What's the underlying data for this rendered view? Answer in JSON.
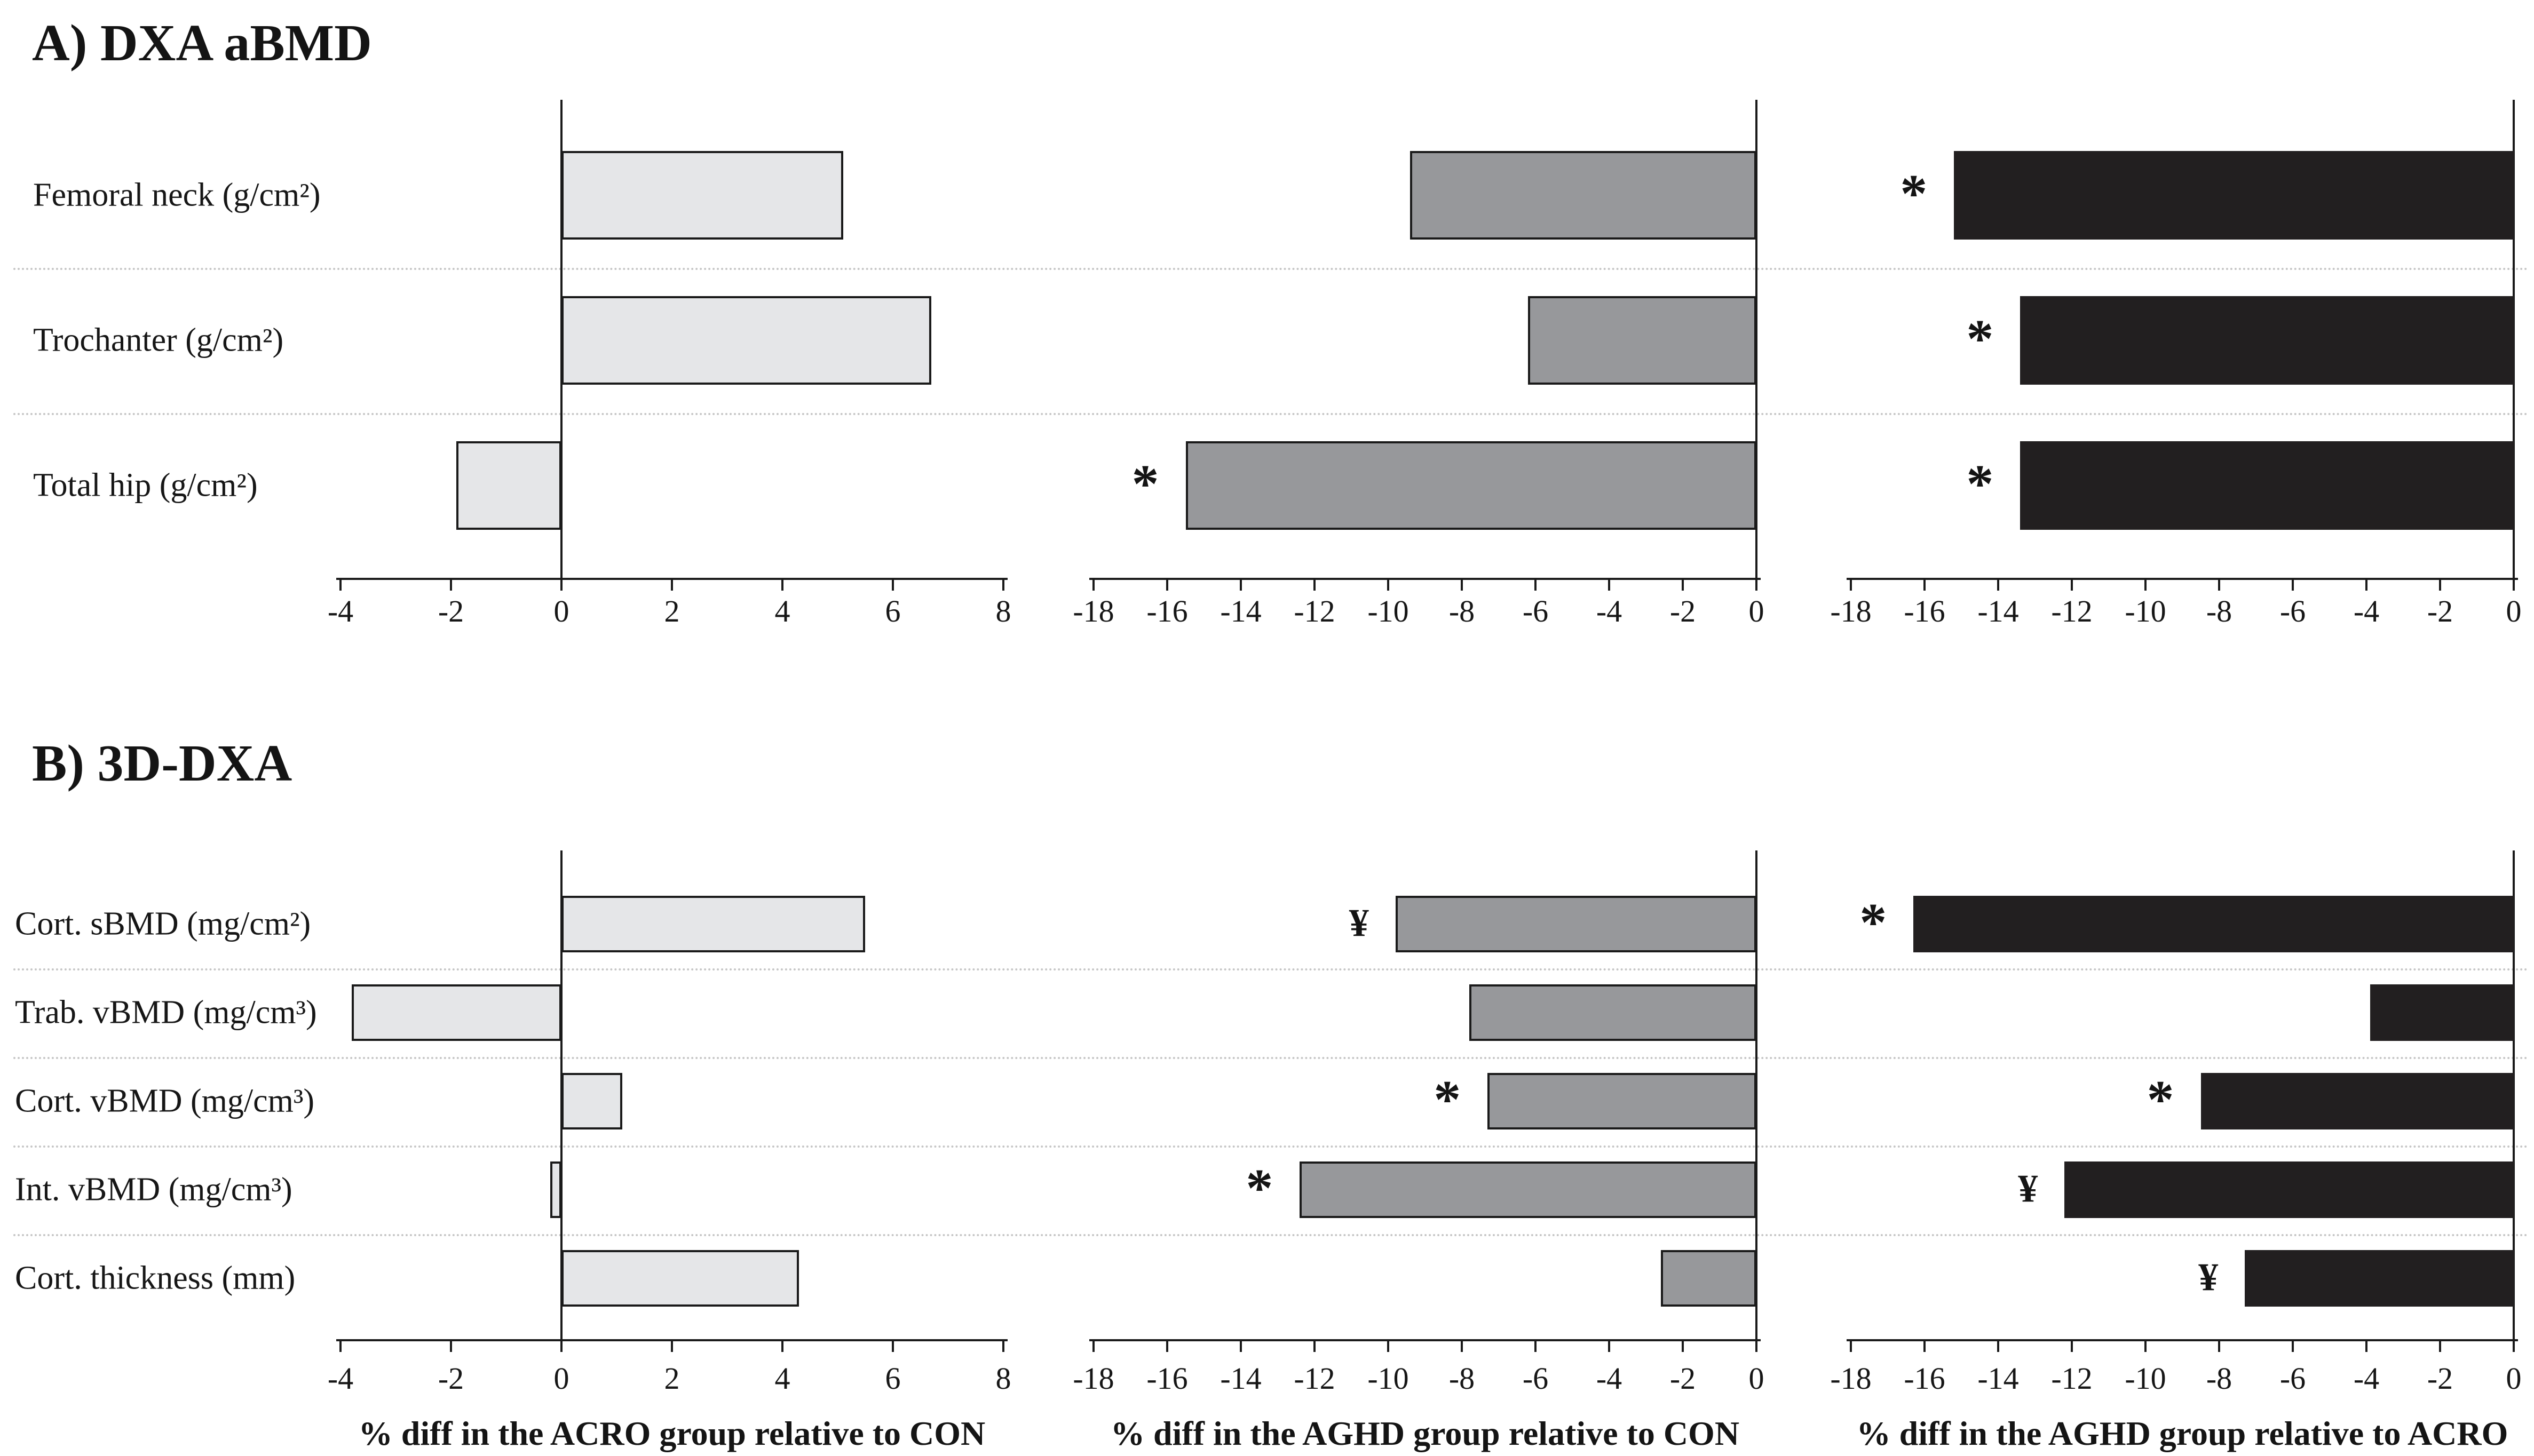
{
  "chart_data": {
    "type": "bar",
    "orientation": "horizontal",
    "grid": "dotted row separators",
    "panels": [
      {
        "title": "A) DXA aBMD",
        "categories": [
          "Femoral neck (g/cm²)",
          "Trochanter (g/cm²)",
          "Total hip (g/cm²)"
        ],
        "charts": [
          {
            "name": "ACRO vs CON",
            "xlabel": "",
            "xlim": [
              -4,
              8
            ],
            "ticks": [
              -4,
              -2,
              0,
              2,
              4,
              6,
              8
            ],
            "bar_color": "#e5e6e8",
            "bar_border": "#1a1a1a",
            "values": [
              5.1,
              6.7,
              -1.9
            ],
            "annotations": [
              "",
              "",
              ""
            ]
          },
          {
            "name": "AGHD vs CON",
            "xlabel": "",
            "xlim": [
              -18,
              0
            ],
            "ticks": [
              -18,
              -16,
              -14,
              -12,
              -10,
              -8,
              -6,
              -4,
              -2,
              0
            ],
            "bar_color": "#97989b",
            "bar_border": "#1a1a1a",
            "values": [
              -9.4,
              -6.2,
              -15.5
            ],
            "annotations": [
              "",
              "",
              "*"
            ]
          },
          {
            "name": "AGHD vs ACRO",
            "xlabel": "",
            "xlim": [
              -18,
              0
            ],
            "ticks": [
              -18,
              -16,
              -14,
              -12,
              -10,
              -8,
              -6,
              -4,
              -2,
              0
            ],
            "bar_color": "#221f20",
            "bar_border": "#221f20",
            "values": [
              -15.2,
              -13.4,
              -13.4
            ],
            "annotations": [
              "*",
              "*",
              "*"
            ]
          }
        ]
      },
      {
        "title": "B) 3D-DXA",
        "categories": [
          "Cort. sBMD (mg/cm²)",
          "Trab. vBMD (mg/cm³)",
          "Cort. vBMD (mg/cm³)",
          "Int. vBMD (mg/cm³)",
          "Cort. thickness (mm)"
        ],
        "charts": [
          {
            "name": "ACRO vs CON",
            "xlabel": "% diff in the ACRO group relative to CON",
            "xlim": [
              -4,
              8
            ],
            "ticks": [
              -4,
              -2,
              0,
              2,
              4,
              6,
              8
            ],
            "bar_color": "#e5e6e8",
            "bar_border": "#1a1a1a",
            "values": [
              5.5,
              -3.8,
              1.1,
              -0.2,
              4.3
            ],
            "annotations": [
              "",
              "",
              "",
              "",
              ""
            ]
          },
          {
            "name": "AGHD vs CON",
            "xlabel": "% diff in the AGHD group relative to CON",
            "xlim": [
              -18,
              0
            ],
            "ticks": [
              -18,
              -16,
              -14,
              -12,
              -10,
              -8,
              -6,
              -4,
              -2,
              0
            ],
            "bar_color": "#97989b",
            "bar_border": "#1a1a1a",
            "values": [
              -9.8,
              -7.8,
              -7.3,
              -12.4,
              -2.6
            ],
            "annotations": [
              "¥",
              "",
              "*",
              "*",
              ""
            ]
          },
          {
            "name": "AGHD vs ACRO",
            "xlabel": "% diff in the AGHD group relative to ACRO",
            "xlim": [
              -18,
              0
            ],
            "ticks": [
              -18,
              -16,
              -14,
              -12,
              -10,
              -8,
              -6,
              -4,
              -2,
              0
            ],
            "bar_color": "#221f20",
            "bar_border": "#221f20",
            "values": [
              -16.3,
              -3.9,
              -8.5,
              -12.2,
              -7.3
            ],
            "annotations": [
              "*",
              "",
              "*",
              "¥",
              "¥"
            ]
          }
        ]
      }
    ]
  }
}
